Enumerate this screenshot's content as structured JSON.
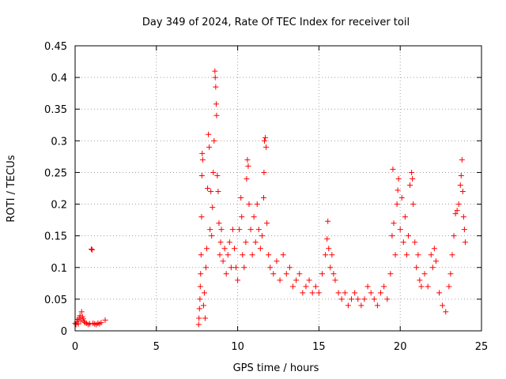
{
  "chart_data": {
    "type": "scatter",
    "title": "Day 349 of 2024, Rate Of TEC Index for receiver toil",
    "xlabel": "GPS time / hours",
    "ylabel": "ROTI / TECUs",
    "xlim": [
      0,
      25
    ],
    "ylim": [
      0,
      0.45
    ],
    "xticks": [
      0,
      5,
      10,
      15,
      20,
      25
    ],
    "xtick_labels": [
      "0",
      "5",
      "10",
      "15",
      "20",
      "25"
    ],
    "yticks": [
      0,
      0.05,
      0.1,
      0.15,
      0.2,
      0.25,
      0.3,
      0.35,
      0.4,
      0.45
    ],
    "ytick_labels": [
      "0",
      "0.05",
      "0.1",
      "0.15",
      "0.2",
      "0.25",
      "0.3",
      "0.35",
      "0.4",
      "0.45"
    ],
    "grid": true,
    "marker": "+",
    "marker_color": "#ff0000",
    "series": [
      {
        "name": "ROTI",
        "points": [
          [
            0.0,
            0.012
          ],
          [
            0.05,
            0.01
          ],
          [
            0.1,
            0.014
          ],
          [
            0.15,
            0.018
          ],
          [
            0.2,
            0.011
          ],
          [
            0.25,
            0.02
          ],
          [
            0.3,
            0.024
          ],
          [
            0.35,
            0.016
          ],
          [
            0.4,
            0.03
          ],
          [
            0.45,
            0.022
          ],
          [
            0.5,
            0.019
          ],
          [
            0.55,
            0.015
          ],
          [
            0.6,
            0.013
          ],
          [
            0.7,
            0.012
          ],
          [
            0.8,
            0.01
          ],
          [
            0.9,
            0.011
          ],
          [
            1.0,
            0.129
          ],
          [
            1.05,
            0.128
          ],
          [
            1.1,
            0.012
          ],
          [
            1.2,
            0.011
          ],
          [
            1.3,
            0.01
          ],
          [
            1.4,
            0.012
          ],
          [
            1.5,
            0.011
          ],
          [
            1.6,
            0.013
          ],
          [
            1.85,
            0.017
          ],
          [
            7.6,
            0.01
          ],
          [
            7.62,
            0.02
          ],
          [
            7.65,
            0.035
          ],
          [
            7.68,
            0.05
          ],
          [
            7.7,
            0.07
          ],
          [
            7.72,
            0.09
          ],
          [
            7.75,
            0.12
          ],
          [
            7.78,
            0.18
          ],
          [
            7.8,
            0.245
          ],
          [
            7.82,
            0.28
          ],
          [
            7.85,
            0.27
          ],
          [
            7.9,
            0.04
          ],
          [
            7.95,
            0.06
          ],
          [
            8.0,
            0.02
          ],
          [
            8.05,
            0.1
          ],
          [
            8.1,
            0.13
          ],
          [
            8.15,
            0.225
          ],
          [
            8.2,
            0.31
          ],
          [
            8.25,
            0.29
          ],
          [
            8.3,
            0.16
          ],
          [
            8.35,
            0.22
          ],
          [
            8.4,
            0.15
          ],
          [
            8.45,
            0.195
          ],
          [
            8.5,
            0.25
          ],
          [
            8.55,
            0.3
          ],
          [
            8.6,
            0.41
          ],
          [
            8.62,
            0.4
          ],
          [
            8.65,
            0.385
          ],
          [
            8.68,
            0.358
          ],
          [
            8.7,
            0.34
          ],
          [
            8.75,
            0.245
          ],
          [
            8.8,
            0.22
          ],
          [
            8.85,
            0.17
          ],
          [
            8.9,
            0.12
          ],
          [
            8.95,
            0.14
          ],
          [
            9.0,
            0.16
          ],
          [
            9.1,
            0.11
          ],
          [
            9.2,
            0.13
          ],
          [
            9.3,
            0.09
          ],
          [
            9.4,
            0.12
          ],
          [
            9.5,
            0.14
          ],
          [
            9.6,
            0.1
          ],
          [
            9.7,
            0.16
          ],
          [
            9.8,
            0.13
          ],
          [
            9.9,
            0.1
          ],
          [
            10.0,
            0.08
          ],
          [
            10.1,
            0.16
          ],
          [
            10.2,
            0.21
          ],
          [
            10.25,
            0.18
          ],
          [
            10.3,
            0.12
          ],
          [
            10.4,
            0.1
          ],
          [
            10.5,
            0.14
          ],
          [
            10.55,
            0.24
          ],
          [
            10.6,
            0.27
          ],
          [
            10.65,
            0.26
          ],
          [
            10.7,
            0.2
          ],
          [
            10.8,
            0.16
          ],
          [
            10.9,
            0.12
          ],
          [
            11.0,
            0.18
          ],
          [
            11.1,
            0.14
          ],
          [
            11.2,
            0.2
          ],
          [
            11.3,
            0.16
          ],
          [
            11.4,
            0.13
          ],
          [
            11.5,
            0.15
          ],
          [
            11.6,
            0.21
          ],
          [
            11.62,
            0.25
          ],
          [
            11.65,
            0.3
          ],
          [
            11.7,
            0.305
          ],
          [
            11.75,
            0.29
          ],
          [
            11.8,
            0.17
          ],
          [
            11.9,
            0.12
          ],
          [
            12.0,
            0.1
          ],
          [
            12.2,
            0.09
          ],
          [
            12.4,
            0.11
          ],
          [
            12.6,
            0.08
          ],
          [
            12.8,
            0.12
          ],
          [
            13.0,
            0.09
          ],
          [
            13.2,
            0.1
          ],
          [
            13.4,
            0.07
          ],
          [
            13.6,
            0.08
          ],
          [
            13.8,
            0.09
          ],
          [
            14.0,
            0.06
          ],
          [
            14.2,
            0.07
          ],
          [
            14.4,
            0.08
          ],
          [
            14.6,
            0.06
          ],
          [
            14.8,
            0.07
          ],
          [
            15.0,
            0.06
          ],
          [
            15.2,
            0.09
          ],
          [
            15.4,
            0.12
          ],
          [
            15.5,
            0.145
          ],
          [
            15.55,
            0.173
          ],
          [
            15.6,
            0.13
          ],
          [
            15.7,
            0.1
          ],
          [
            15.8,
            0.12
          ],
          [
            15.9,
            0.09
          ],
          [
            16.0,
            0.08
          ],
          [
            16.2,
            0.06
          ],
          [
            16.4,
            0.05
          ],
          [
            16.6,
            0.06
          ],
          [
            16.8,
            0.04
          ],
          [
            17.0,
            0.05
          ],
          [
            17.2,
            0.06
          ],
          [
            17.4,
            0.05
          ],
          [
            17.6,
            0.04
          ],
          [
            17.8,
            0.05
          ],
          [
            18.0,
            0.07
          ],
          [
            18.2,
            0.06
          ],
          [
            18.4,
            0.05
          ],
          [
            18.6,
            0.04
          ],
          [
            18.8,
            0.06
          ],
          [
            19.0,
            0.07
          ],
          [
            19.2,
            0.05
          ],
          [
            19.4,
            0.09
          ],
          [
            19.5,
            0.15
          ],
          [
            19.55,
            0.255
          ],
          [
            19.6,
            0.17
          ],
          [
            19.7,
            0.12
          ],
          [
            19.8,
            0.2
          ],
          [
            19.85,
            0.222
          ],
          [
            19.9,
            0.24
          ],
          [
            20.0,
            0.16
          ],
          [
            20.1,
            0.21
          ],
          [
            20.2,
            0.14
          ],
          [
            20.3,
            0.18
          ],
          [
            20.4,
            0.12
          ],
          [
            20.5,
            0.15
          ],
          [
            20.6,
            0.23
          ],
          [
            20.7,
            0.25
          ],
          [
            20.75,
            0.24
          ],
          [
            20.8,
            0.2
          ],
          [
            20.9,
            0.14
          ],
          [
            21.0,
            0.1
          ],
          [
            21.1,
            0.12
          ],
          [
            21.2,
            0.08
          ],
          [
            21.3,
            0.07
          ],
          [
            21.5,
            0.09
          ],
          [
            21.7,
            0.07
          ],
          [
            21.9,
            0.12
          ],
          [
            22.0,
            0.1
          ],
          [
            22.1,
            0.13
          ],
          [
            22.2,
            0.11
          ],
          [
            22.4,
            0.06
          ],
          [
            22.6,
            0.04
          ],
          [
            22.8,
            0.03
          ],
          [
            23.0,
            0.07
          ],
          [
            23.1,
            0.09
          ],
          [
            23.2,
            0.12
          ],
          [
            23.3,
            0.15
          ],
          [
            23.4,
            0.185
          ],
          [
            23.5,
            0.19
          ],
          [
            23.6,
            0.2
          ],
          [
            23.7,
            0.23
          ],
          [
            23.75,
            0.245
          ],
          [
            23.8,
            0.27
          ],
          [
            23.85,
            0.22
          ],
          [
            23.9,
            0.18
          ],
          [
            23.95,
            0.16
          ],
          [
            24.0,
            0.14
          ]
        ]
      }
    ]
  }
}
